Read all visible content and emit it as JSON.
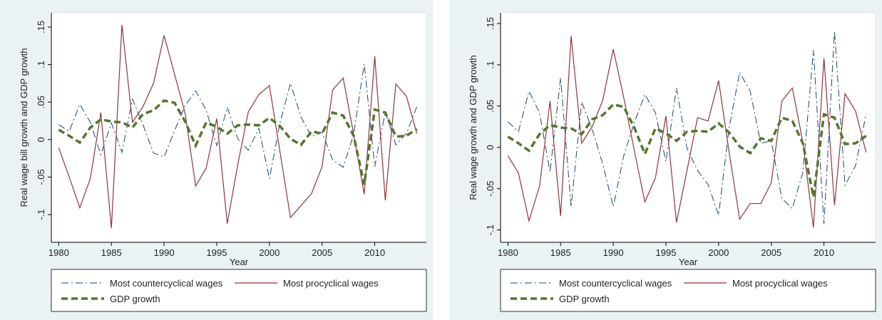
{
  "chart_data": [
    {
      "type": "line",
      "y_label": "Real wage bill growth and GDP growth",
      "x_label": "Year",
      "x": [
        1980,
        1981,
        1982,
        1983,
        1984,
        1985,
        1986,
        1987,
        1988,
        1989,
        1990,
        1991,
        1992,
        1993,
        1994,
        1995,
        1996,
        1997,
        1998,
        1999,
        2000,
        2001,
        2002,
        2003,
        2004,
        2005,
        2006,
        2007,
        2008,
        2009,
        2010,
        2011,
        2012,
        2013,
        2014
      ],
      "xlim": [
        1979.3,
        2014.9
      ],
      "xticks": [
        1980,
        1985,
        1990,
        1995,
        2000,
        2005,
        2010
      ],
      "ylim": [
        -0.137,
        0.169
      ],
      "yticks": [
        {
          "value": -0.1,
          "label": "-.1"
        },
        {
          "value": -0.05,
          "label": "-.05"
        },
        0,
        {
          "value": 0.05,
          "label": ".05"
        },
        {
          "value": 0.1,
          "label": ".1"
        },
        {
          "value": 0.15,
          "label": ".15"
        }
      ],
      "series": [
        {
          "name": "Most countercyclical wages",
          "color": "#1a476f",
          "line_style": "dashdot",
          "line_width": 1,
          "values": [
            0.02,
            0.011,
            0.047,
            0.023,
            -0.02,
            0.022,
            -0.017,
            0.054,
            0.02,
            -0.018,
            -0.023,
            0.012,
            0.045,
            0.065,
            0.039,
            -0.008,
            0.043,
            0.001,
            -0.014,
            0.015,
            -0.052,
            0.022,
            0.075,
            0.03,
            0.004,
            0.01,
            -0.027,
            -0.037,
            0.007,
            0.101,
            -0.036,
            0.037,
            -0.007,
            0.008,
            0.044
          ]
        },
        {
          "name": "Most procyclical wages",
          "color": "#90353b",
          "line_style": "solid",
          "line_width": 1.2,
          "values": [
            -0.011,
            -0.05,
            -0.091,
            -0.052,
            0.036,
            -0.118,
            0.153,
            0.023,
            0.044,
            0.075,
            0.139,
            0.087,
            0.035,
            -0.062,
            -0.038,
            0.028,
            -0.112,
            -0.033,
            0.037,
            0.06,
            0.072,
            -0.016,
            -0.104,
            -0.088,
            -0.072,
            -0.036,
            0.066,
            0.082,
            0.007,
            -0.073,
            0.111,
            -0.081,
            0.074,
            0.058,
            0.008
          ]
        },
        {
          "name": "GDP growth",
          "color": "#55752f",
          "line_style": "dash",
          "line_width": 3.5,
          "values": [
            0.013,
            0.005,
            -0.004,
            0.016,
            0.027,
            0.024,
            0.023,
            0.016,
            0.034,
            0.039,
            0.052,
            0.049,
            0.024,
            -0.008,
            0.023,
            0.017,
            0.008,
            0.019,
            0.02,
            0.019,
            0.029,
            0.018,
            0.001,
            -0.007,
            0.011,
            0.008,
            0.036,
            0.032,
            0.005,
            -0.06,
            0.04,
            0.036,
            0.004,
            0.005,
            0.014
          ]
        }
      ]
    },
    {
      "type": "line",
      "y_label": "Real wage growth and GDP growth",
      "x_label": "Year",
      "x": [
        1980,
        1981,
        1982,
        1983,
        1984,
        1985,
        1986,
        1987,
        1988,
        1989,
        1990,
        1991,
        1992,
        1993,
        1994,
        1995,
        1996,
        1997,
        1998,
        1999,
        2000,
        2001,
        2002,
        2003,
        2004,
        2005,
        2006,
        2007,
        2008,
        2009,
        2010,
        2011,
        2012,
        2013,
        2014
      ],
      "xlim": [
        1979.3,
        2014.9
      ],
      "xticks": [
        1980,
        1985,
        1990,
        1995,
        2000,
        2005,
        2010
      ],
      "ylim": [
        -0.115,
        0.163
      ],
      "yticks": [
        {
          "value": -0.1,
          "label": "-.1"
        },
        {
          "value": -0.05,
          "label": "-.05"
        },
        0,
        {
          "value": 0.05,
          "label": ".05"
        },
        {
          "value": 0.1,
          "label": ".1"
        },
        {
          "value": 0.15,
          "label": ".15"
        }
      ],
      "series": [
        {
          "name": "Most countercyclical wages",
          "color": "#1a476f",
          "line_style": "dashdot",
          "line_width": 1,
          "values": [
            0.031,
            0.019,
            0.068,
            0.042,
            -0.03,
            0.084,
            -0.072,
            0.055,
            0.022,
            -0.02,
            -0.072,
            -0.01,
            0.03,
            0.064,
            0.042,
            -0.017,
            0.072,
            -0.001,
            -0.028,
            -0.045,
            -0.082,
            0.024,
            0.091,
            0.068,
            0.005,
            0.008,
            -0.062,
            -0.074,
            -0.03,
            0.118,
            -0.093,
            0.141,
            -0.046,
            -0.022,
            0.04
          ]
        },
        {
          "name": "Most procyclical wages",
          "color": "#90353b",
          "line_style": "solid",
          "line_width": 1.2,
          "values": [
            -0.01,
            -0.031,
            -0.089,
            -0.047,
            0.056,
            -0.083,
            0.135,
            0.005,
            0.025,
            0.057,
            0.119,
            0.06,
            -0.004,
            -0.066,
            -0.037,
            0.038,
            -0.091,
            -0.028,
            0.036,
            0.032,
            0.081,
            -0.006,
            -0.087,
            -0.068,
            -0.068,
            -0.043,
            0.056,
            0.072,
            0.006,
            -0.097,
            0.108,
            -0.07,
            0.065,
            0.044,
            -0.006
          ]
        },
        {
          "name": "GDP growth",
          "color": "#55752f",
          "line_style": "dash",
          "line_width": 3.5,
          "values": [
            0.013,
            0.005,
            -0.004,
            0.016,
            0.027,
            0.024,
            0.023,
            0.016,
            0.034,
            0.039,
            0.052,
            0.049,
            0.024,
            -0.008,
            0.023,
            0.017,
            0.008,
            0.019,
            0.02,
            0.019,
            0.029,
            0.018,
            0.001,
            -0.007,
            0.011,
            0.008,
            0.036,
            0.032,
            0.005,
            -0.06,
            0.04,
            0.036,
            0.004,
            0.005,
            0.014
          ]
        }
      ]
    }
  ]
}
